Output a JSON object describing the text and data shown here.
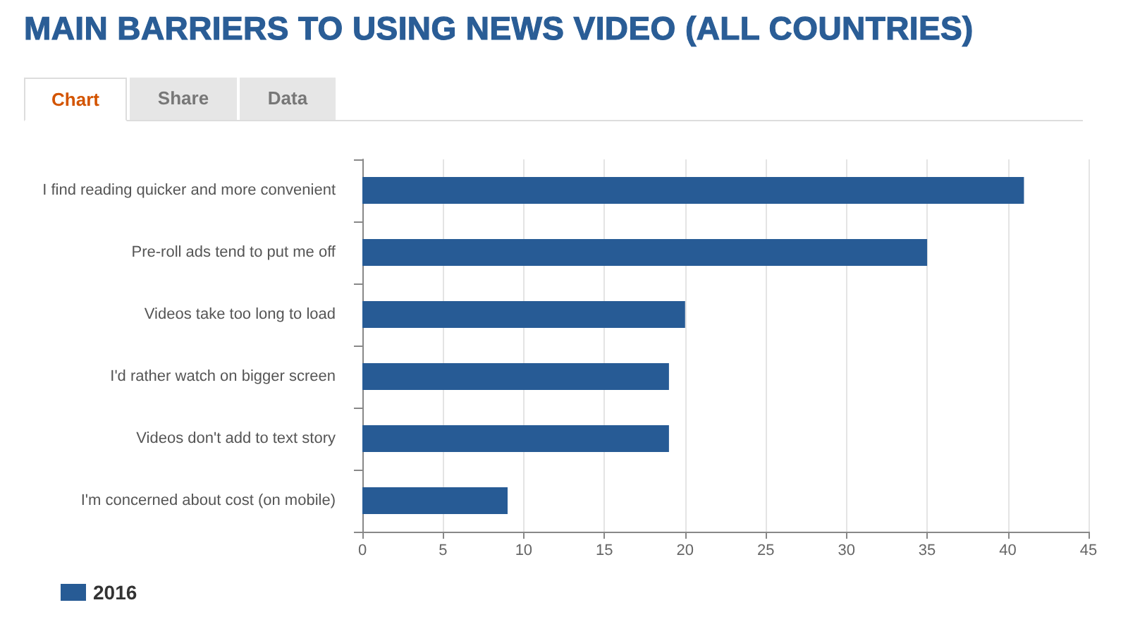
{
  "chart_data": {
    "type": "bar",
    "orientation": "horizontal",
    "title": "MAIN BARRIERS TO USING NEWS VIDEO (ALL COUNTRIES)",
    "annotations": [
      "Chart",
      "Share",
      "Data"
    ],
    "categories": [
      "I find reading quicker and more convenient",
      "Pre-roll ads tend to put me off",
      "Videos take too long to load",
      "I'd rather watch on bigger screen",
      "Videos don't add to text story",
      "I'm concerned about cost (on mobile)"
    ],
    "series": [
      {
        "name": "2016",
        "color": "#275b95",
        "values": [
          41,
          35,
          20,
          19,
          19,
          9
        ]
      }
    ],
    "xlim": [
      0,
      45
    ],
    "xticks": [
      0,
      5,
      10,
      15,
      20,
      25,
      30,
      35,
      40,
      45
    ],
    "grid": "x",
    "legend": "bottom left"
  }
}
